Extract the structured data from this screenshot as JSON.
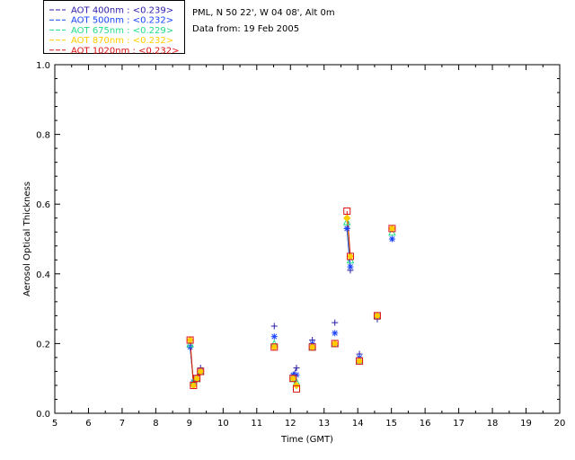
{
  "header": {
    "site": "PML, N 50 22', W 04 08', Alt 0m",
    "date": "Data from: 19 Feb 2005"
  },
  "chart_data": {
    "type": "scatter",
    "xlabel": "Time (GMT)",
    "ylabel": "Aerosol Optical Thickness",
    "xlim": [
      5,
      20
    ],
    "ylim": [
      0.0,
      1.0
    ],
    "x_ticks": [
      5,
      6,
      7,
      8,
      9,
      10,
      11,
      12,
      13,
      14,
      15,
      16,
      17,
      18,
      19,
      20
    ],
    "y_ticks": [
      0.0,
      0.2,
      0.4,
      0.6,
      0.8,
      1.0
    ],
    "y_tick_labels": [
      "0.0",
      "0.2",
      "0.4",
      "0.6",
      "0.8",
      "1.0"
    ],
    "grid": false,
    "legend_position": "top-left",
    "series": [
      {
        "name": "AOT  400nm : <0.239>",
        "color": "#2a1aa8",
        "marker": "plus",
        "points": [
          [
            9.02,
            0.19
          ],
          [
            9.12,
            0.09
          ],
          [
            9.22,
            0.1
          ],
          [
            9.33,
            0.13
          ],
          [
            11.52,
            0.25
          ],
          [
            12.08,
            0.11
          ],
          [
            12.18,
            0.13
          ],
          [
            12.65,
            0.21
          ],
          [
            13.32,
            0.26
          ],
          [
            13.68,
            0.53
          ],
          [
            13.78,
            0.41
          ],
          [
            14.05,
            0.17
          ],
          [
            14.58,
            0.27
          ],
          [
            15.02,
            0.5
          ]
        ]
      },
      {
        "name": "AOT  500nm : <0.232>",
        "color": "#1a44ff",
        "marker": "asterisk",
        "points": [
          [
            9.02,
            0.19
          ],
          [
            9.12,
            0.09
          ],
          [
            9.22,
            0.1
          ],
          [
            9.33,
            0.12
          ],
          [
            11.52,
            0.22
          ],
          [
            12.08,
            0.11
          ],
          [
            12.18,
            0.11
          ],
          [
            12.65,
            0.2
          ],
          [
            13.32,
            0.23
          ],
          [
            13.68,
            0.53
          ],
          [
            13.78,
            0.42
          ],
          [
            14.05,
            0.16
          ],
          [
            14.58,
            0.28
          ],
          [
            15.02,
            0.5
          ]
        ]
      },
      {
        "name": "AOT  675nm : <0.229>",
        "color": "#22dd88",
        "marker": "triangle",
        "points": [
          [
            9.02,
            0.2
          ],
          [
            9.12,
            0.09
          ],
          [
            9.22,
            0.1
          ],
          [
            9.33,
            0.12
          ],
          [
            11.52,
            0.2
          ],
          [
            12.08,
            0.1
          ],
          [
            12.18,
            0.09
          ],
          [
            12.65,
            0.19
          ],
          [
            13.32,
            0.2
          ],
          [
            13.68,
            0.55
          ],
          [
            13.78,
            0.44
          ],
          [
            14.05,
            0.15
          ],
          [
            14.58,
            0.28
          ],
          [
            15.02,
            0.52
          ]
        ]
      },
      {
        "name": "AOT  870nm : <0.232>",
        "color": "#ffcc00",
        "marker": "diamond",
        "points": [
          [
            9.02,
            0.21
          ],
          [
            9.12,
            0.08
          ],
          [
            9.22,
            0.1
          ],
          [
            9.33,
            0.12
          ],
          [
            11.52,
            0.19
          ],
          [
            12.08,
            0.1
          ],
          [
            12.18,
            0.08
          ],
          [
            12.65,
            0.19
          ],
          [
            13.32,
            0.2
          ],
          [
            13.68,
            0.56
          ],
          [
            13.78,
            0.45
          ],
          [
            14.05,
            0.15
          ],
          [
            14.58,
            0.28
          ],
          [
            15.02,
            0.53
          ]
        ]
      },
      {
        "name": "AOT 1020nm : <0.232>",
        "color": "#dd1111",
        "marker": "square",
        "points": [
          [
            9.02,
            0.21
          ],
          [
            9.12,
            0.08
          ],
          [
            9.22,
            0.1
          ],
          [
            9.33,
            0.12
          ],
          [
            11.52,
            0.19
          ],
          [
            12.08,
            0.1
          ],
          [
            12.18,
            0.07
          ],
          [
            12.65,
            0.19
          ],
          [
            13.32,
            0.2
          ],
          [
            13.68,
            0.58
          ],
          [
            13.78,
            0.45
          ],
          [
            14.05,
            0.15
          ],
          [
            14.58,
            0.28
          ],
          [
            15.02,
            0.53
          ]
        ]
      }
    ]
  }
}
